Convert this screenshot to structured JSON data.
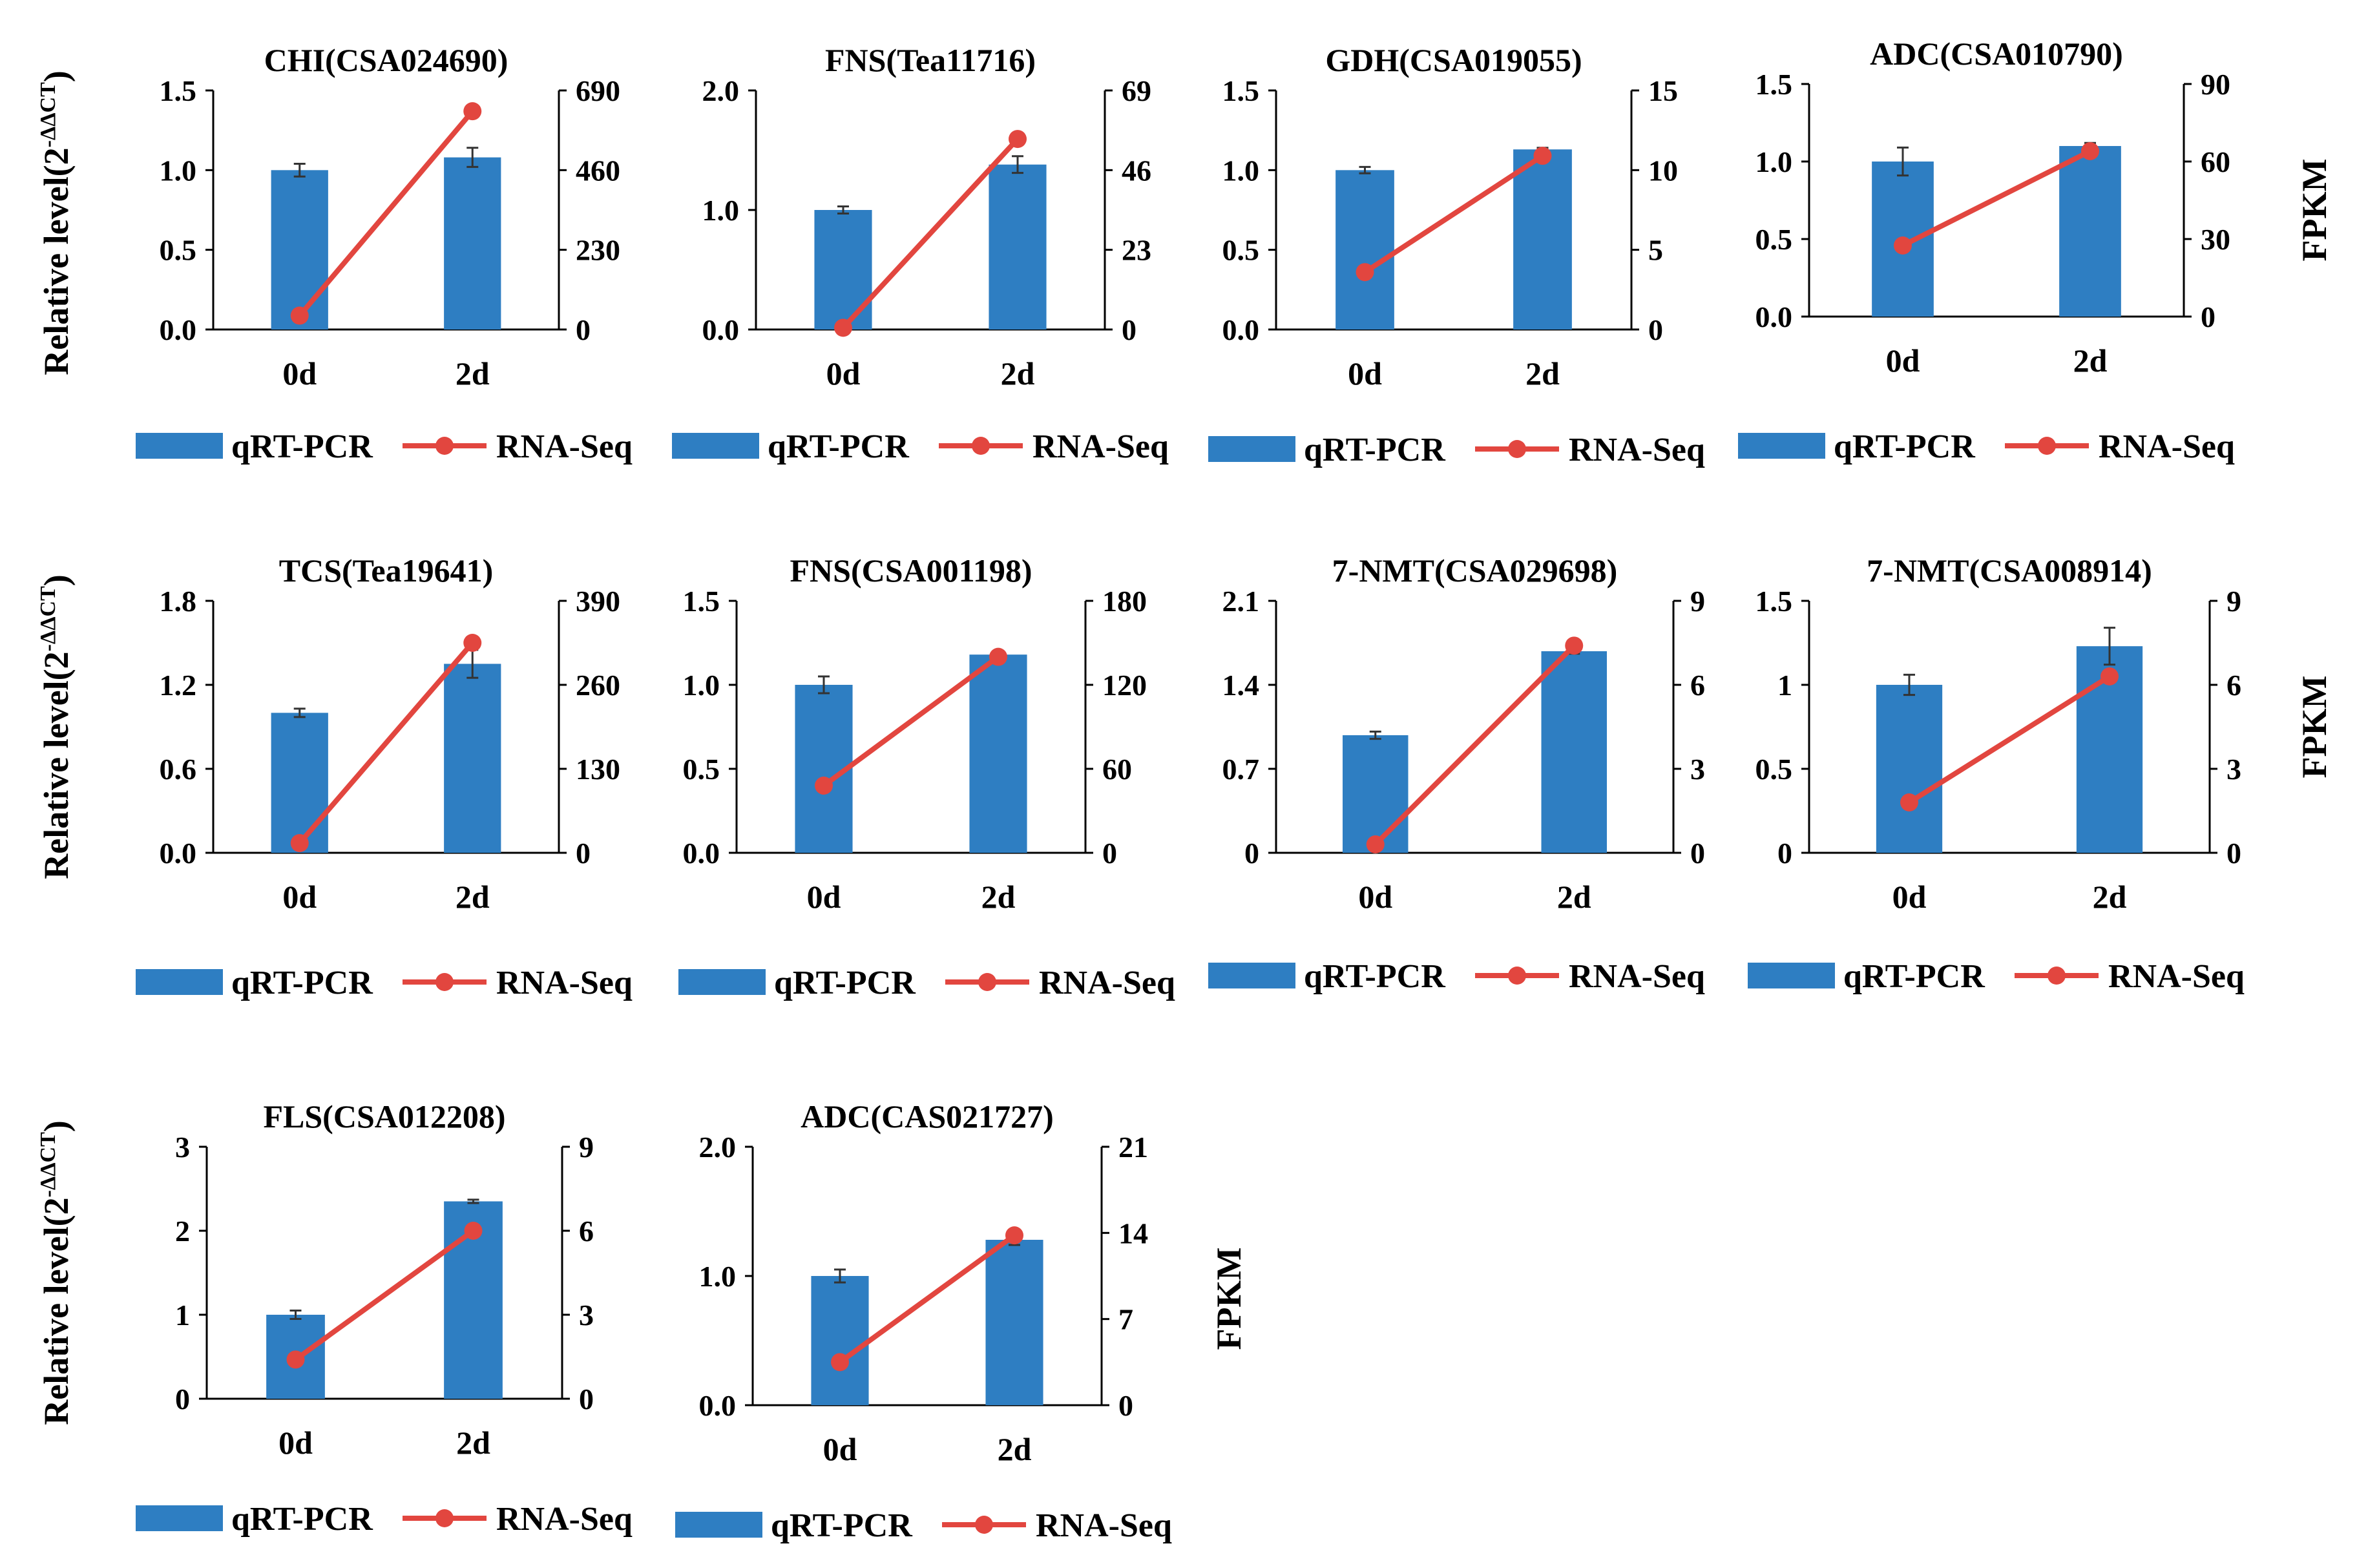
{
  "colors": {
    "bar": "#2E7EC2",
    "line": "#E2463F",
    "axis": "#000000",
    "error": "#333333"
  },
  "y_axis_titles": {
    "left": "Relative level(2",
    "left_superscript": "-ΔΔCT",
    "left_close": ")",
    "right": "FPKM"
  },
  "legend": {
    "bar_label": "qRT-PCR",
    "line_label": "RNA-Seq"
  },
  "chart_data": [
    {
      "type": "bar+line",
      "title": "CHI(CSA024690)",
      "categories": [
        "0d",
        "2d"
      ],
      "series": [
        {
          "name": "qRT-PCR",
          "axis": "left",
          "values": [
            1.0,
            1.08
          ],
          "errors": [
            0.04,
            0.06
          ]
        },
        {
          "name": "RNA-Seq",
          "axis": "right",
          "values": [
            40,
            630
          ]
        }
      ],
      "ylim_left": [
        0,
        1.5
      ],
      "yticks_left": [
        "0.0",
        "0.5",
        "1.0",
        "1.5"
      ],
      "ylim_right": [
        0,
        690
      ],
      "yticks_right": [
        "0",
        "230",
        "460",
        "690"
      ]
    },
    {
      "type": "bar+line",
      "title": "FNS(Tea11716)",
      "categories": [
        "0d",
        "2d"
      ],
      "series": [
        {
          "name": "qRT-PCR",
          "axis": "left",
          "values": [
            1.0,
            1.38
          ],
          "errors": [
            0.03,
            0.07
          ]
        },
        {
          "name": "RNA-Seq",
          "axis": "right",
          "values": [
            0.5,
            55
          ]
        }
      ],
      "ylim_left": [
        0,
        2.0
      ],
      "yticks_left": [
        "0.0",
        "1.0",
        "2.0"
      ],
      "ylim_right": [
        0,
        69
      ],
      "yticks_right": [
        "0",
        "23",
        "46",
        "69"
      ]
    },
    {
      "type": "bar+line",
      "title": "GDH(CSA019055)",
      "categories": [
        "0d",
        "2d"
      ],
      "series": [
        {
          "name": "qRT-PCR",
          "axis": "left",
          "values": [
            1.0,
            1.13
          ],
          "errors": [
            0.02,
            0.01
          ]
        },
        {
          "name": "RNA-Seq",
          "axis": "right",
          "values": [
            3.6,
            10.9
          ]
        }
      ],
      "ylim_left": [
        0,
        1.5
      ],
      "yticks_left": [
        "0.0",
        "0.5",
        "1.0",
        "1.5"
      ],
      "ylim_right": [
        0,
        15
      ],
      "yticks_right": [
        "0",
        "5",
        "10",
        "15"
      ]
    },
    {
      "type": "bar+line",
      "title": "ADC(CSA010790)",
      "categories": [
        "0d",
        "2d"
      ],
      "series": [
        {
          "name": "qRT-PCR",
          "axis": "left",
          "values": [
            1.0,
            1.1
          ],
          "errors": [
            0.09,
            0.02
          ]
        },
        {
          "name": "RNA-Seq",
          "axis": "right",
          "values": [
            27.5,
            64
          ]
        }
      ],
      "ylim_left": [
        0,
        1.5
      ],
      "yticks_left": [
        "0.0",
        "0.5",
        "1.0",
        "1.5"
      ],
      "ylim_right": [
        0,
        90
      ],
      "yticks_right": [
        "0",
        "30",
        "60",
        "90"
      ]
    },
    {
      "type": "bar+line",
      "title": "TCS(Tea19641)",
      "categories": [
        "0d",
        "2d"
      ],
      "series": [
        {
          "name": "qRT-PCR",
          "axis": "left",
          "values": [
            1.0,
            1.35
          ],
          "errors": [
            0.03,
            0.1
          ]
        },
        {
          "name": "RNA-Seq",
          "axis": "right",
          "values": [
            15,
            325
          ]
        }
      ],
      "ylim_left": [
        0,
        1.8
      ],
      "yticks_left": [
        "0.0",
        "0.6",
        "1.2",
        "1.8"
      ],
      "ylim_right": [
        0,
        390
      ],
      "yticks_right": [
        "0",
        "130",
        "260",
        "390"
      ]
    },
    {
      "type": "bar+line",
      "title": "FNS(CSA001198)",
      "categories": [
        "0d",
        "2d"
      ],
      "series": [
        {
          "name": "qRT-PCR",
          "axis": "left",
          "values": [
            1.0,
            1.18
          ],
          "errors": [
            0.05,
            0.02
          ]
        },
        {
          "name": "RNA-Seq",
          "axis": "right",
          "values": [
            48,
            140
          ]
        }
      ],
      "ylim_left": [
        0,
        1.5
      ],
      "yticks_left": [
        "0.0",
        "0.5",
        "1.0",
        "1.5"
      ],
      "ylim_right": [
        0,
        180
      ],
      "yticks_right": [
        "0",
        "60",
        "120",
        "180"
      ]
    },
    {
      "type": "bar+line",
      "title": "7-NMT(CSA029698)",
      "categories": [
        "0d",
        "2d"
      ],
      "series": [
        {
          "name": "qRT-PCR",
          "axis": "left",
          "values": [
            0.98,
            1.68
          ],
          "errors": [
            0.03,
            0.02
          ]
        },
        {
          "name": "RNA-Seq",
          "axis": "right",
          "values": [
            0.3,
            7.4
          ]
        }
      ],
      "ylim_left": [
        0,
        2.1
      ],
      "yticks_left": [
        "0",
        "0.7",
        "1.4",
        "2.1"
      ],
      "ylim_right": [
        0,
        9
      ],
      "yticks_right": [
        "0",
        "3",
        "6",
        "9"
      ]
    },
    {
      "type": "bar+line",
      "title": "7-NMT(CSA008914)",
      "categories": [
        "0d",
        "2d"
      ],
      "series": [
        {
          "name": "qRT-PCR",
          "axis": "left",
          "values": [
            1.0,
            1.23
          ],
          "errors": [
            0.06,
            0.11
          ]
        },
        {
          "name": "RNA-Seq",
          "axis": "right",
          "values": [
            1.8,
            6.3
          ]
        }
      ],
      "ylim_left": [
        0,
        1.5
      ],
      "yticks_left": [
        "0",
        "0.5",
        "1",
        "1.5"
      ],
      "ylim_right": [
        0,
        9
      ],
      "yticks_right": [
        "0",
        "3",
        "6",
        "9"
      ]
    },
    {
      "type": "bar+line",
      "title": "FLS(CSA012208)",
      "categories": [
        "0d",
        "2d"
      ],
      "series": [
        {
          "name": "qRT-PCR",
          "axis": "left",
          "values": [
            1.0,
            2.35
          ],
          "errors": [
            0.05,
            0.02
          ]
        },
        {
          "name": "RNA-Seq",
          "axis": "right",
          "values": [
            1.4,
            6.0
          ]
        }
      ],
      "ylim_left": [
        0,
        3
      ],
      "yticks_left": [
        "0",
        "1",
        "2",
        "3"
      ],
      "ylim_right": [
        0,
        9
      ],
      "yticks_right": [
        "0",
        "3",
        "6",
        "9"
      ]
    },
    {
      "type": "bar+line",
      "title": "ADC(CAS021727)",
      "categories": [
        "0d",
        "2d"
      ],
      "series": [
        {
          "name": "qRT-PCR",
          "axis": "left",
          "values": [
            1.0,
            1.28
          ],
          "errors": [
            0.05,
            0.04
          ]
        },
        {
          "name": "RNA-Seq",
          "axis": "right",
          "values": [
            3.5,
            13.8
          ]
        }
      ],
      "ylim_left": [
        0,
        2.0
      ],
      "yticks_left": [
        "0.0",
        "1.0",
        "2.0"
      ],
      "ylim_right": [
        0,
        21
      ],
      "yticks_right": [
        "0",
        "7",
        "14",
        "21"
      ]
    }
  ]
}
